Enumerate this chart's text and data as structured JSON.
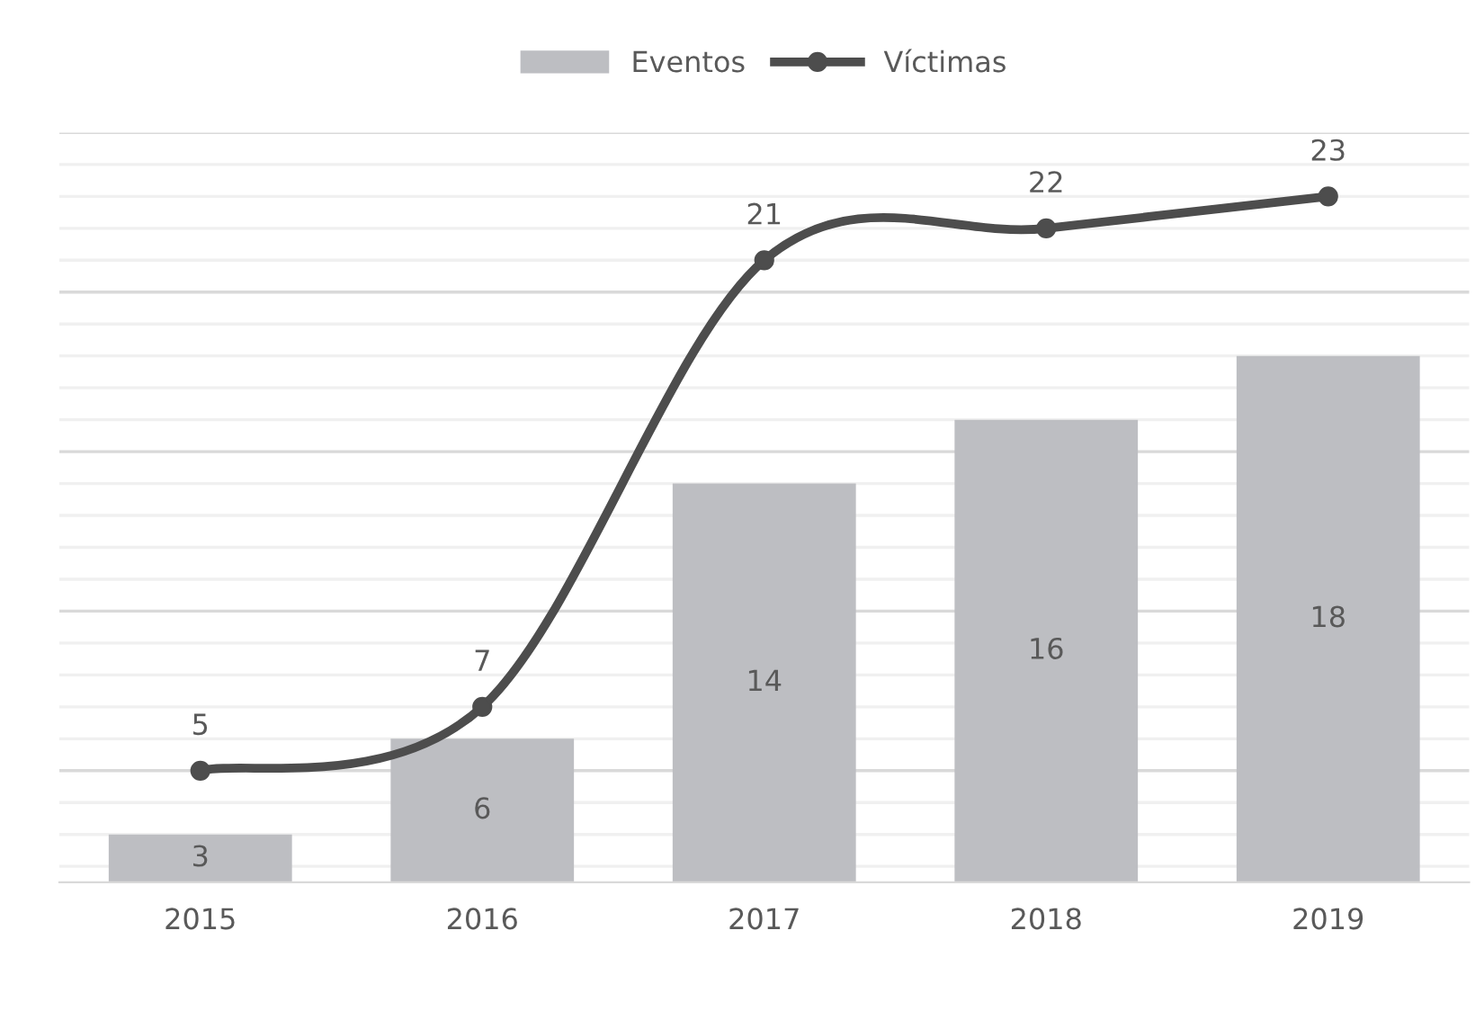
{
  "chart_data": {
    "type": "bar",
    "categories": [
      "2015",
      "2016",
      "2017",
      "2018",
      "2019"
    ],
    "series": [
      {
        "name": "Eventos",
        "color": "#bdbec2",
        "values": [
          3,
          6,
          14,
          16,
          18
        ]
      },
      {
        "name": "Víctimas",
        "type": "line",
        "color": "#4d4d4d",
        "values": [
          5,
          7,
          21,
          22,
          23
        ],
        "marker": "circle"
      }
    ],
    "ylim": [
      1.5,
      25
    ],
    "yticks": [
      {
        "value": 2,
        "label": null
      },
      {
        "value": 3,
        "label": null
      },
      {
        "value": 4,
        "label": null
      },
      {
        "value": 5,
        "label": null
      },
      {
        "value": 6,
        "label": null
      },
      {
        "value": 7,
        "label": null
      },
      {
        "value": 8,
        "label": null
      },
      {
        "value": 9,
        "label": null
      },
      {
        "value": 10,
        "label": null
      },
      {
        "value": 11,
        "label": null
      },
      {
        "value": 12,
        "label": null
      },
      {
        "value": 13,
        "label": null
      },
      {
        "value": 14,
        "label": null
      },
      {
        "value": 15,
        "label": null
      },
      {
        "value": 16,
        "label": null
      },
      {
        "value": 17,
        "label": null
      },
      {
        "value": 18,
        "label": null
      },
      {
        "value": 19,
        "label": null
      },
      {
        "value": 20,
        "label": null
      },
      {
        "value": 21,
        "label": null
      },
      {
        "value": 22,
        "label": null
      },
      {
        "value": 23,
        "label": null
      },
      {
        "value": 24,
        "label": null
      },
      {
        "value": 25,
        "label": null
      }
    ],
    "tick_labels": "x",
    "grid": "y",
    "legend": "top",
    "data_labels": true
  }
}
